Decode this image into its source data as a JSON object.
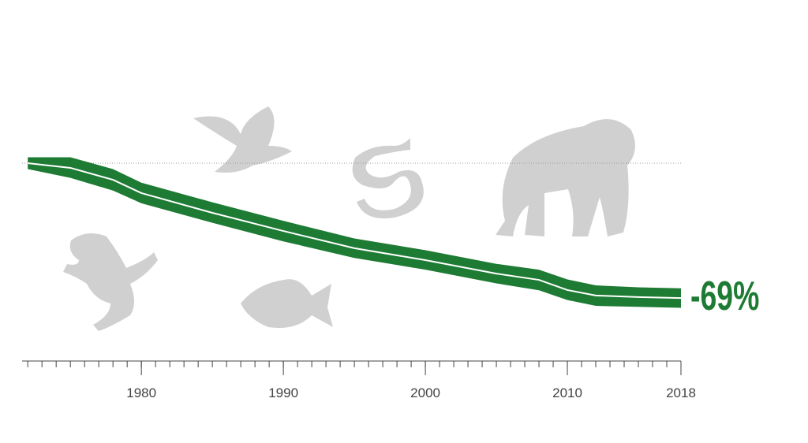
{
  "chart_data": {
    "type": "band-line",
    "annotation": "-69%",
    "x": [
      1972,
      1975,
      1978,
      1980,
      1985,
      1990,
      1995,
      2000,
      2005,
      2008,
      2010,
      2012,
      2015,
      2018
    ],
    "values": [
      1.0,
      0.976,
      0.915,
      0.847,
      0.746,
      0.653,
      0.565,
      0.504,
      0.435,
      0.403,
      0.351,
      0.323,
      0.315,
      0.31
    ],
    "upper": [
      1.03,
      1.03,
      0.97,
      0.9,
      0.8,
      0.705,
      0.615,
      0.555,
      0.485,
      0.455,
      0.405,
      0.375,
      0.365,
      0.36
    ],
    "lower": [
      0.97,
      0.925,
      0.86,
      0.795,
      0.695,
      0.6,
      0.515,
      0.455,
      0.385,
      0.35,
      0.3,
      0.27,
      0.265,
      0.26
    ],
    "color": "#1e7b34",
    "line_color": "#ffffff",
    "baseline": 1.0,
    "xlim": [
      1971.6,
      2018
    ],
    "ylim": [
      0,
      1.5
    ],
    "xticks": [
      1980,
      1990,
      2000,
      2010,
      2018
    ],
    "xminorticks": [
      1972,
      1973,
      1974,
      1975,
      1976,
      1977,
      1978,
      1979,
      1980,
      1981,
      1982,
      1983,
      1984,
      1985,
      1986,
      1987,
      1988,
      1989,
      1990,
      1991,
      1992,
      1993,
      1994,
      1995,
      1996,
      1997,
      1998,
      1999,
      2000,
      2001,
      2002,
      2003,
      2004,
      2005,
      2006,
      2007,
      2008,
      2009,
      2010,
      2011,
      2012,
      2013,
      2014,
      2015,
      2016,
      2017,
      2018
    ]
  }
}
